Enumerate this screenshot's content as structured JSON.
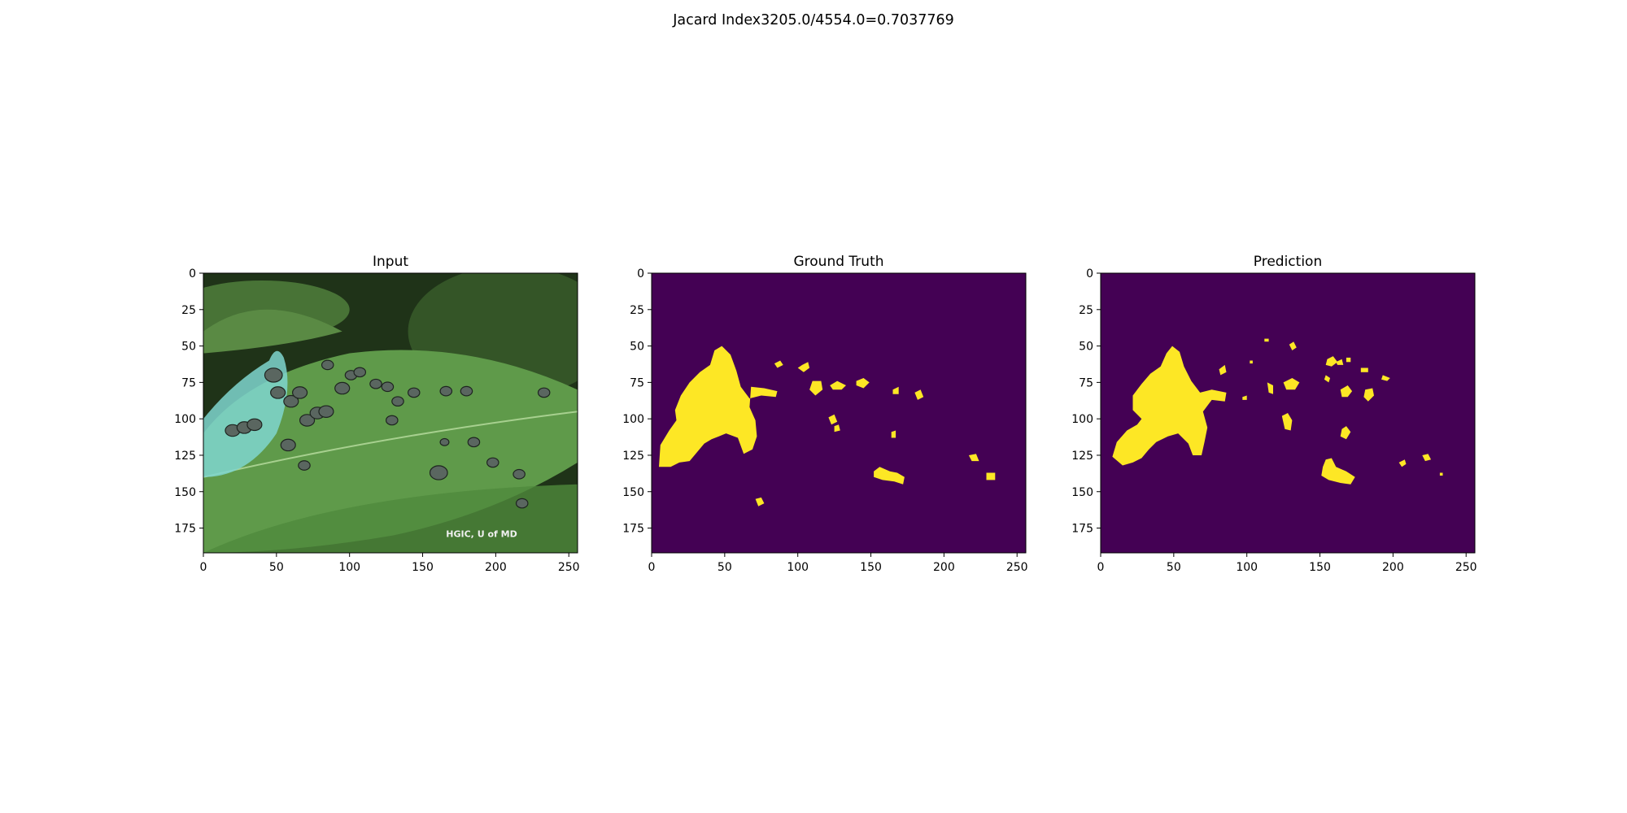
{
  "figure": {
    "suptitle": "Jacard Index3205.0/4554.0=0.7037769"
  },
  "colors": {
    "mask_background": "#440154",
    "mask_foreground": "#fde725",
    "leaf_light": "#5f9a4a",
    "leaf_dark": "#24401c",
    "lesion": "#5a6660",
    "blight_cyan": "#7fd6cf"
  },
  "chart_data": [
    {
      "type": "image",
      "title": "Input",
      "xlabel": "",
      "ylabel": "",
      "xlim": [
        0,
        256
      ],
      "ylim": [
        192,
        0
      ],
      "xticks": [
        0,
        50,
        100,
        150,
        200,
        250
      ],
      "yticks": [
        0,
        25,
        50,
        75,
        100,
        125,
        150,
        175
      ],
      "watermark": "HGIC, U of MD",
      "lesions": [
        [
          48,
          70,
          6
        ],
        [
          51,
          82,
          5
        ],
        [
          60,
          88,
          5
        ],
        [
          66,
          82,
          5
        ],
        [
          71,
          101,
          5
        ],
        [
          78,
          96,
          5
        ],
        [
          84,
          95,
          5
        ],
        [
          20,
          108,
          5
        ],
        [
          28,
          106,
          5
        ],
        [
          35,
          104,
          5
        ],
        [
          58,
          118,
          5
        ],
        [
          85,
          63,
          4
        ],
        [
          95,
          79,
          5
        ],
        [
          101,
          70,
          4
        ],
        [
          107,
          68,
          4
        ],
        [
          118,
          76,
          4
        ],
        [
          126,
          78,
          4
        ],
        [
          133,
          88,
          4
        ],
        [
          129,
          101,
          4
        ],
        [
          144,
          82,
          4
        ],
        [
          166,
          81,
          4
        ],
        [
          180,
          81,
          4
        ],
        [
          185,
          116,
          4
        ],
        [
          161,
          137,
          6
        ],
        [
          69,
          132,
          4
        ],
        [
          165,
          116,
          3
        ],
        [
          198,
          130,
          4
        ],
        [
          216,
          138,
          4
        ],
        [
          233,
          82,
          4
        ],
        [
          218,
          158,
          4
        ]
      ]
    },
    {
      "type": "heatmap",
      "title": "Ground Truth",
      "xlabel": "",
      "ylabel": "",
      "xlim": [
        0,
        256
      ],
      "ylim": [
        192,
        0
      ],
      "xticks": [
        0,
        50,
        100,
        150,
        200,
        250
      ],
      "yticks": [
        0,
        25,
        50,
        75,
        100,
        125,
        150,
        175
      ],
      "values": [
        0,
        1
      ],
      "blobs": [
        [
          [
            5,
            133
          ],
          [
            6,
            118
          ],
          [
            12,
            108
          ],
          [
            17,
            101
          ],
          [
            16,
            94
          ],
          [
            20,
            84
          ],
          [
            26,
            75
          ],
          [
            33,
            68
          ],
          [
            40,
            63
          ],
          [
            43,
            53
          ],
          [
            48,
            50
          ],
          [
            54,
            56
          ],
          [
            58,
            67
          ],
          [
            61,
            78
          ],
          [
            67,
            86
          ],
          [
            75,
            84
          ],
          [
            85,
            85
          ],
          [
            86,
            81
          ],
          [
            77,
            79
          ],
          [
            68,
            78
          ],
          [
            67,
            92
          ],
          [
            71,
            101
          ],
          [
            72,
            112
          ],
          [
            69,
            121
          ],
          [
            63,
            124
          ],
          [
            59,
            113
          ],
          [
            51,
            110
          ],
          [
            46,
            112
          ],
          [
            41,
            114
          ],
          [
            36,
            117
          ],
          [
            31,
            123
          ],
          [
            26,
            129
          ],
          [
            19,
            130
          ],
          [
            13,
            133
          ]
        ],
        [
          [
            103,
            63
          ],
          [
            107,
            61
          ],
          [
            108,
            65
          ],
          [
            104,
            68
          ],
          [
            100,
            65
          ]
        ],
        [
          [
            84,
            62
          ],
          [
            88,
            60
          ],
          [
            90,
            63
          ],
          [
            86,
            65
          ]
        ],
        [
          [
            110,
            74
          ],
          [
            116,
            74
          ],
          [
            117,
            80
          ],
          [
            112,
            84
          ],
          [
            108,
            80
          ]
        ],
        [
          [
            122,
            77
          ],
          [
            127,
            74
          ],
          [
            133,
            77
          ],
          [
            130,
            80
          ],
          [
            124,
            80
          ]
        ],
        [
          [
            140,
            74
          ],
          [
            145,
            72
          ],
          [
            149,
            75
          ],
          [
            145,
            79
          ],
          [
            140,
            77
          ]
        ],
        [
          [
            121,
            99
          ],
          [
            125,
            97
          ],
          [
            127,
            102
          ],
          [
            123,
            104
          ]
        ],
        [
          [
            125,
            105
          ],
          [
            128,
            104
          ],
          [
            129,
            108
          ],
          [
            125,
            109
          ]
        ],
        [
          [
            165,
            80
          ],
          [
            169,
            78
          ],
          [
            169,
            83
          ],
          [
            165,
            83
          ]
        ],
        [
          [
            180,
            82
          ],
          [
            184,
            80
          ],
          [
            186,
            85
          ],
          [
            182,
            87
          ]
        ],
        [
          [
            164,
            109
          ],
          [
            167,
            108
          ],
          [
            167,
            113
          ],
          [
            164,
            113
          ]
        ],
        [
          [
            152,
            136
          ],
          [
            156,
            133
          ],
          [
            163,
            136
          ],
          [
            168,
            137
          ],
          [
            173,
            140
          ],
          [
            172,
            145
          ],
          [
            166,
            143
          ],
          [
            158,
            142
          ],
          [
            152,
            140
          ]
        ],
        [
          [
            217,
            125
          ],
          [
            222,
            124
          ],
          [
            224,
            129
          ],
          [
            219,
            129
          ]
        ],
        [
          [
            229,
            137
          ],
          [
            235,
            137
          ],
          [
            235,
            142
          ],
          [
            229,
            142
          ]
        ],
        [
          [
            71,
            155
          ],
          [
            75,
            154
          ],
          [
            77,
            158
          ],
          [
            73,
            160
          ]
        ]
      ]
    },
    {
      "type": "heatmap",
      "title": "Prediction",
      "xlabel": "",
      "ylabel": "",
      "xlim": [
        0,
        256
      ],
      "ylim": [
        192,
        0
      ],
      "xticks": [
        0,
        50,
        100,
        150,
        200,
        250
      ],
      "yticks": [
        0,
        25,
        50,
        75,
        100,
        125,
        150,
        175
      ],
      "values": [
        0,
        1
      ],
      "blobs": [
        [
          [
            8,
            126
          ],
          [
            11,
            116
          ],
          [
            18,
            108
          ],
          [
            25,
            104
          ],
          [
            28,
            100
          ],
          [
            22,
            94
          ],
          [
            22,
            84
          ],
          [
            28,
            76
          ],
          [
            34,
            69
          ],
          [
            41,
            64
          ],
          [
            45,
            55
          ],
          [
            49,
            50
          ],
          [
            54,
            54
          ],
          [
            57,
            64
          ],
          [
            62,
            74
          ],
          [
            68,
            82
          ],
          [
            76,
            80
          ],
          [
            86,
            82
          ],
          [
            85,
            88
          ],
          [
            76,
            87
          ],
          [
            70,
            95
          ],
          [
            73,
            106
          ],
          [
            71,
            116
          ],
          [
            69,
            125
          ],
          [
            63,
            125
          ],
          [
            60,
            117
          ],
          [
            53,
            110
          ],
          [
            46,
            112
          ],
          [
            38,
            116
          ],
          [
            33,
            121
          ],
          [
            28,
            127
          ],
          [
            22,
            130
          ],
          [
            15,
            132
          ]
        ],
        [
          [
            81,
            66
          ],
          [
            85,
            63
          ],
          [
            86,
            68
          ],
          [
            82,
            70
          ]
        ],
        [
          [
            129,
            49
          ],
          [
            132,
            47
          ],
          [
            134,
            51
          ],
          [
            131,
            53
          ]
        ],
        [
          [
            112,
            45
          ],
          [
            115,
            45
          ],
          [
            115,
            47
          ],
          [
            112,
            47
          ]
        ],
        [
          [
            155,
            59
          ],
          [
            159,
            57
          ],
          [
            162,
            61
          ],
          [
            158,
            64
          ],
          [
            154,
            63
          ]
        ],
        [
          [
            161,
            61
          ],
          [
            165,
            59
          ],
          [
            166,
            63
          ],
          [
            162,
            63
          ]
        ],
        [
          [
            168,
            58
          ],
          [
            171,
            58
          ],
          [
            171,
            61
          ],
          [
            168,
            61
          ]
        ],
        [
          [
            178,
            65
          ],
          [
            183,
            65
          ],
          [
            183,
            68
          ],
          [
            178,
            68
          ]
        ],
        [
          [
            125,
            75
          ],
          [
            131,
            72
          ],
          [
            136,
            75
          ],
          [
            133,
            80
          ],
          [
            127,
            80
          ]
        ],
        [
          [
            114,
            75
          ],
          [
            118,
            77
          ],
          [
            118,
            83
          ],
          [
            115,
            82
          ]
        ],
        [
          [
            154,
            70
          ],
          [
            157,
            72
          ],
          [
            156,
            75
          ],
          [
            153,
            73
          ]
        ],
        [
          [
            164,
            80
          ],
          [
            169,
            77
          ],
          [
            172,
            81
          ],
          [
            169,
            85
          ],
          [
            165,
            85
          ]
        ],
        [
          [
            181,
            80
          ],
          [
            186,
            79
          ],
          [
            187,
            84
          ],
          [
            183,
            88
          ],
          [
            180,
            85
          ]
        ],
        [
          [
            193,
            70
          ],
          [
            198,
            72
          ],
          [
            196,
            74
          ],
          [
            192,
            73
          ]
        ],
        [
          [
            124,
            98
          ],
          [
            128,
            96
          ],
          [
            131,
            101
          ],
          [
            130,
            108
          ],
          [
            126,
            107
          ]
        ],
        [
          [
            165,
            107
          ],
          [
            168,
            105
          ],
          [
            171,
            109
          ],
          [
            168,
            114
          ],
          [
            164,
            112
          ]
        ],
        [
          [
            154,
            128
          ],
          [
            158,
            127
          ],
          [
            161,
            133
          ],
          [
            168,
            136
          ],
          [
            174,
            140
          ],
          [
            171,
            145
          ],
          [
            164,
            144
          ],
          [
            156,
            142
          ],
          [
            151,
            139
          ],
          [
            152,
            133
          ]
        ],
        [
          [
            97,
            85
          ],
          [
            100,
            84
          ],
          [
            100,
            87
          ],
          [
            97,
            87
          ]
        ],
        [
          [
            102,
            60
          ],
          [
            104,
            60
          ],
          [
            104,
            62
          ],
          [
            102,
            62
          ]
        ],
        [
          [
            204,
            130
          ],
          [
            208,
            128
          ],
          [
            209,
            131
          ],
          [
            206,
            133
          ]
        ],
        [
          [
            220,
            125
          ],
          [
            224,
            124
          ],
          [
            226,
            128
          ],
          [
            222,
            129
          ]
        ],
        [
          [
            232,
            137
          ],
          [
            234,
            137
          ],
          [
            234,
            139
          ],
          [
            232,
            139
          ]
        ]
      ]
    }
  ]
}
